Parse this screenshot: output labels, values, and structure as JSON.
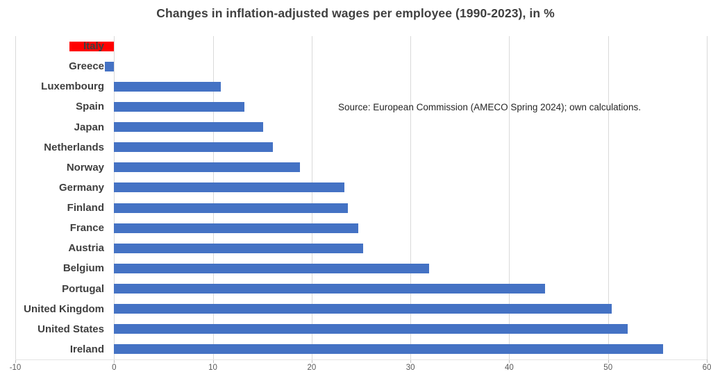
{
  "chart_data": {
    "type": "bar",
    "orientation": "horizontal",
    "title": "Changes in inflation-adjusted wages per employee (1990-2023), in %",
    "annotation": "Source: European Commission (AMECO Spring 2024); own calculations.",
    "categories": [
      "Italy",
      "Greece",
      "Luxembourg",
      "Spain",
      "Japan",
      "Netherlands",
      "Norway",
      "Germany",
      "Finland",
      "France",
      "Austria",
      "Belgium",
      "Portugal",
      "United Kingdom",
      "United States",
      "Ireland"
    ],
    "values": [
      -4.5,
      -0.9,
      10.8,
      13.2,
      15.1,
      16.1,
      18.8,
      23.3,
      23.7,
      24.7,
      25.2,
      31.9,
      43.6,
      50.4,
      52.0,
      55.6
    ],
    "bar_colors": [
      "#FF0000",
      "#4472C4",
      "#4472C4",
      "#4472C4",
      "#4472C4",
      "#4472C4",
      "#4472C4",
      "#4472C4",
      "#4472C4",
      "#4472C4",
      "#4472C4",
      "#4472C4",
      "#4472C4",
      "#4472C4",
      "#4472C4",
      "#4472C4"
    ],
    "xlabel": "",
    "ylabel": "",
    "xlim": [
      -10,
      60
    ],
    "xticks": [
      -10,
      0,
      10,
      20,
      30,
      40,
      50,
      60
    ],
    "xtick_labels": [
      "-10",
      "0",
      "10",
      "20",
      "30",
      "40",
      "50",
      "60"
    ],
    "grid": true,
    "legend": "none",
    "colors": {
      "default_bar": "#4472C4",
      "highlight_bar": "#FF0000",
      "gridline": "#D9D9D9",
      "title_text": "#404040",
      "category_text": "#3F3F3F",
      "tick_text": "#595959"
    }
  }
}
